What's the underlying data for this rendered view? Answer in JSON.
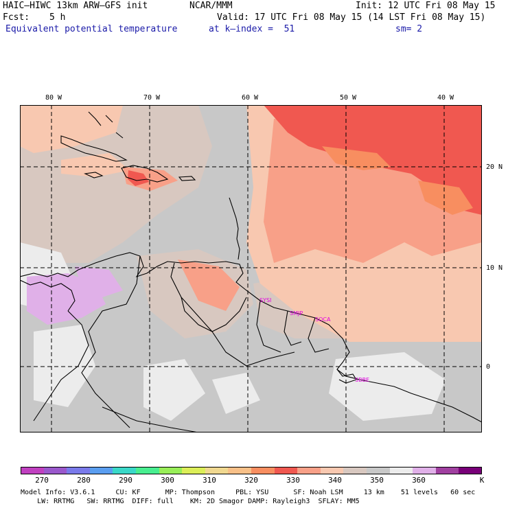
{
  "header": {
    "model": "HAIC–HIWC 13km ARW–GFS init",
    "org": "NCAR/MMM",
    "init": "Init: 12 UTC Fri 08 May 15",
    "fcst_label": "Fcst:",
    "fcst_value": "5 h",
    "valid": "Valid: 17 UTC Fri 08 May 15 (14 LST Fri 08 May 15)",
    "field": "Equivalent potential temperature",
    "level": "at k–index =  51",
    "smooth": "sm= 2"
  },
  "map": {
    "lon_labels": [
      "80 W",
      "70 W",
      "60 W",
      "50 W",
      "40 W"
    ],
    "lat_labels": [
      "20 N",
      "10 N",
      "0"
    ],
    "stations": [
      "SYSI",
      "SMJP",
      "SOCA",
      "SBBE"
    ]
  },
  "colorbar": {
    "unit": "K",
    "tick_labels": [
      "270",
      "280",
      "290",
      "300",
      "310",
      "320",
      "330",
      "340",
      "350",
      "360"
    ],
    "colors": [
      "#c040c0",
      "#9a58cc",
      "#7a7aea",
      "#5a9ef0",
      "#3ad8c8",
      "#48ee90",
      "#98ee58",
      "#dcee58",
      "#f0d890",
      "#f8c088",
      "#f88e60",
      "#f05850",
      "#f8a088",
      "#f8c8b0",
      "#d8c8c0",
      "#c8c8c8",
      "#ececec",
      "#e0b0e8",
      "#a040a0",
      "#780078"
    ]
  },
  "footer": {
    "line1": "Model Info: V3.6.1     CU: KF      MP: Thompson     PBL: YSU      SF: Noah LSM     13 km    51 levels   60 sec",
    "line2": "    LW: RRTMG   SW: RRTMG  DIFF: full    KM: 2D Smagor DAMP: Rayleigh3  SFLAY: MM5"
  }
}
